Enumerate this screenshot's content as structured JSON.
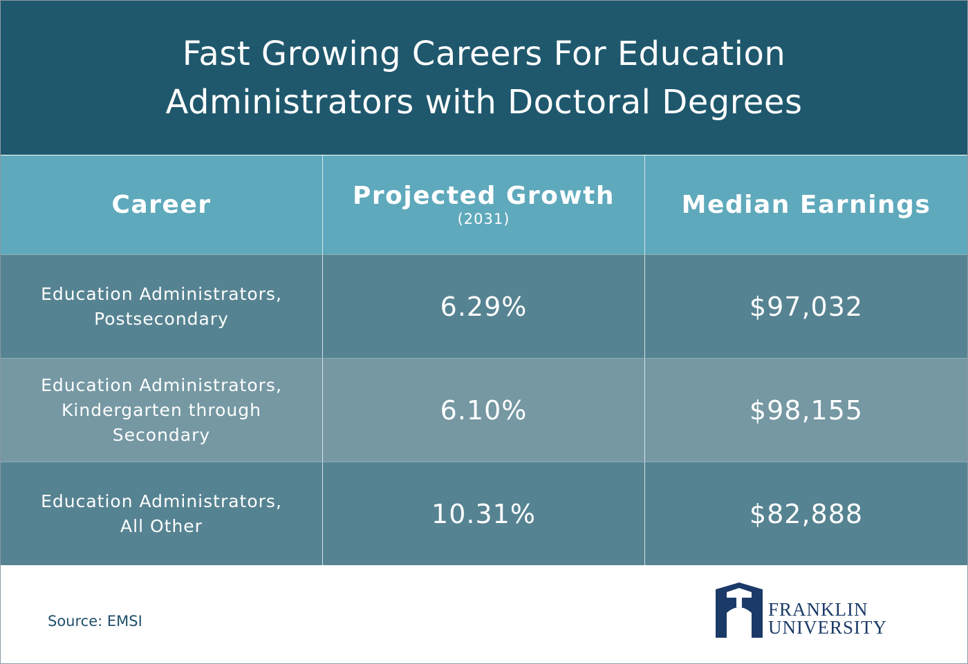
{
  "header": {
    "title": [
      "Fast Growing Careers For Education",
      "Administrators with Doctoral Degrees"
    ]
  },
  "table": {
    "columns": [
      {
        "label": "Career"
      },
      {
        "label": "Projected Growth",
        "note": "(2031)"
      },
      {
        "label": "Median Earnings"
      }
    ],
    "rows": [
      [
        [
          "Education Administrators,",
          "Postsecondary"
        ],
        "6.29%",
        "$97,032"
      ],
      [
        [
          "Education Administrators,",
          "Kindergarten through",
          "Secondary"
        ],
        "6.10%",
        "$98,155"
      ],
      [
        [
          "Education Administrators,",
          "All Other"
        ],
        "10.31%",
        "$82,888"
      ]
    ]
  },
  "footer": {
    "source": "Source: EMSI",
    "logo": [
      "FRANKLIN",
      "UNIVERSITY"
    ]
  }
}
